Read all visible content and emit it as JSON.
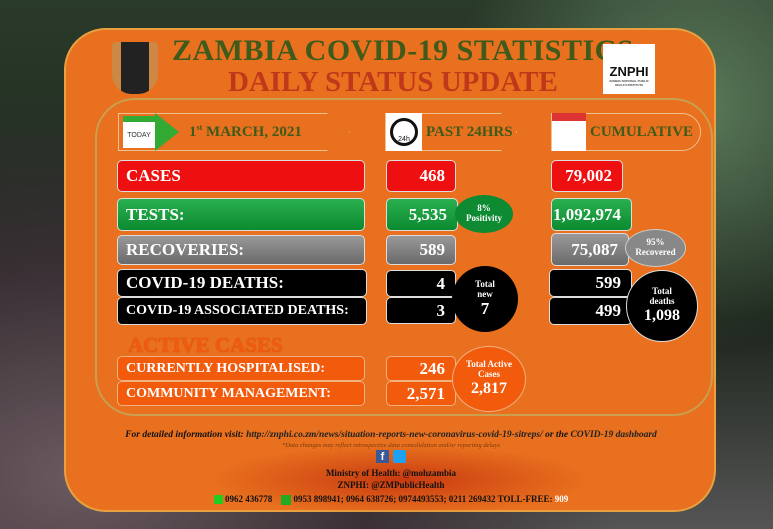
{
  "header": {
    "title": "ZAMBIA COVID-19 STATISTICS",
    "subtitle": "DAILY STATUS UPDATE",
    "logo_text": "ZNPHI",
    "logo_sub": "ZAMBIA NATIONAL PUBLIC HEALTH INSTITUTE"
  },
  "date": {
    "icon_label": "TODAY",
    "day": "1",
    "suffix": "st",
    "rest": " MARCH, 2021"
  },
  "columns": {
    "past": "PAST 24HRS",
    "past_icon": "24h",
    "cumulative": "CUMULATIVE"
  },
  "rows": {
    "cases": {
      "label": "CASES",
      "past": "468",
      "cumulative": "79,002"
    },
    "tests": {
      "label": "TESTS:",
      "past": "5,535",
      "cumulative": "1,092,974",
      "badge_pct": "8%",
      "badge_text": "Positivity"
    },
    "recoveries": {
      "label": "RECOVERIES:",
      "past": "589",
      "cumulative": "75,087",
      "badge_pct": "95%",
      "badge_text": "Recovered"
    },
    "deaths": {
      "label": "COVID-19 DEATHS:",
      "past": "4",
      "cumulative": "599"
    },
    "assoc_deaths": {
      "label": "COVID-19 ASSOCIATED DEATHS:",
      "past": "3",
      "cumulative": "499"
    }
  },
  "total_new": {
    "line1": "Total",
    "line2": "new",
    "value": "7"
  },
  "total_deaths": {
    "line1": "Total",
    "line2": "deaths",
    "value": "1,098"
  },
  "active": {
    "heading": "ACTIVE CASES",
    "hospitalised_label": "CURRENTLY HOSPITALISED:",
    "hospitalised": "246",
    "community_label": "COMMUNITY MANAGEMENT:",
    "community": "2,571",
    "total_line1": "Total Active",
    "total_line2": "Cases",
    "total": "2,817"
  },
  "footer": {
    "info_prefix": "For detailed information visit: ",
    "info_link": "http://znphi.co.zm/news/situation-reports-new-coronavirus-covid-19-sitreps/",
    "info_mid": " or the ",
    "dashboard_link": "COVID-19 dashboard",
    "disclaimer": "*Data changes may reflect retrospective data consolidation and/or reporting delays",
    "moh": "Ministry of Health: @mohzambia",
    "znphi": "ZNPHI: @ZMPublicHealth",
    "whatsapp": "0962 436778",
    "phones": "0953 898941; 0964 638726; 0974493553; 0211 269432 TOLL-FREE: ",
    "tollfree": "909"
  },
  "colors": {
    "panel": "#e8701e",
    "cases": "#ee1010",
    "tests": "#0c8a30",
    "recoveries": "#808080",
    "deaths": "#000000",
    "active": "#f25a0c",
    "title": "#3f5a1a",
    "subtitle": "#c0381a"
  }
}
